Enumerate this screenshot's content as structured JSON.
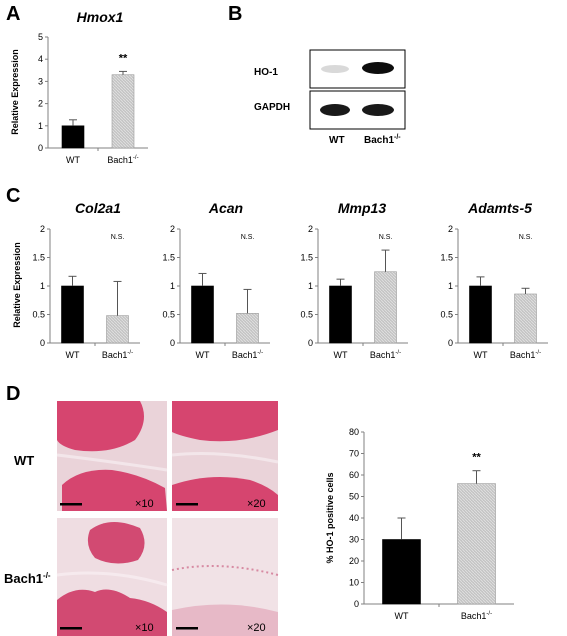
{
  "panels": {
    "a": {
      "letter": "A"
    },
    "b": {
      "letter": "B"
    },
    "c": {
      "letter": "C"
    },
    "d": {
      "letter": "D"
    }
  },
  "blot": {
    "bands": [
      "HO-1",
      "GAPDH"
    ],
    "lanes": [
      "WT",
      "Bach1"
    ],
    "lane_sup": "-/-",
    "ho1_intensity": [
      0.15,
      0.95
    ],
    "gapdh_intensity": [
      0.9,
      0.9
    ]
  },
  "histology": {
    "rows": [
      "WT",
      "Bach1"
    ],
    "row_sup": "-/-",
    "magnifications": [
      "×10",
      "×20"
    ]
  },
  "colors": {
    "wt_bar": "#000000",
    "ko_bar": "#bdbdbd",
    "axis": "#808080",
    "tissue_pink": "#d94a72",
    "tissue_bg": "#ecd6dc"
  },
  "chart_data": [
    {
      "type": "bar",
      "title": "Hmox1",
      "ylabel": "Relative Expression",
      "ylim": [
        0,
        5
      ],
      "yticks": [
        "0",
        "1",
        "2",
        "3",
        "4",
        "5"
      ],
      "categories": [
        "WT",
        "Bach1"
      ],
      "category_sup": [
        "",
        "-/-"
      ],
      "values": [
        1.0,
        3.3
      ],
      "errors": [
        0.27,
        0.15
      ],
      "annotation": "**"
    },
    {
      "type": "bar",
      "title": "Col2a1",
      "ylabel": "Relative Expression",
      "ylim": [
        0,
        2
      ],
      "yticks": [
        "0",
        "0.5",
        "1",
        "1.5",
        "2"
      ],
      "categories": [
        "WT",
        "Bach1"
      ],
      "category_sup": [
        "",
        "-/-"
      ],
      "values": [
        1.0,
        0.48
      ],
      "errors": [
        0.17,
        0.6
      ],
      "annotation": "N.S."
    },
    {
      "type": "bar",
      "title": "Acan",
      "ylabel": "",
      "ylim": [
        0,
        2
      ],
      "yticks": [
        "0",
        "0.5",
        "1",
        "1.5",
        "2"
      ],
      "categories": [
        "WT",
        "Bach1"
      ],
      "category_sup": [
        "",
        "-/-"
      ],
      "values": [
        1.0,
        0.52
      ],
      "errors": [
        0.22,
        0.42
      ],
      "annotation": "N.S."
    },
    {
      "type": "bar",
      "title": "Mmp13",
      "ylabel": "",
      "ylim": [
        0,
        2
      ],
      "yticks": [
        "0",
        "0.5",
        "1",
        "1.5",
        "2"
      ],
      "categories": [
        "WT",
        "Bach1"
      ],
      "category_sup": [
        "",
        "-/-"
      ],
      "values": [
        1.0,
        1.25
      ],
      "errors": [
        0.12,
        0.38
      ],
      "annotation": "N.S."
    },
    {
      "type": "bar",
      "title": "Adamts-5",
      "ylabel": "",
      "ylim": [
        0,
        2
      ],
      "yticks": [
        "0",
        "0.5",
        "1",
        "1.5",
        "2"
      ],
      "categories": [
        "WT",
        "Bach1"
      ],
      "category_sup": [
        "",
        "-/-"
      ],
      "values": [
        1.0,
        0.86
      ],
      "errors": [
        0.16,
        0.1
      ],
      "annotation": "N.S."
    },
    {
      "type": "bar",
      "title": "",
      "ylabel": "% HO-1  positive cells",
      "ylim": [
        0,
        80
      ],
      "yticks": [
        "0",
        "10",
        "20",
        "30",
        "40",
        "50",
        "60",
        "70",
        "80"
      ],
      "categories": [
        "WT",
        "Bach1"
      ],
      "category_sup": [
        "",
        "-/-"
      ],
      "values": [
        30,
        56
      ],
      "errors": [
        10,
        6
      ],
      "annotation": "**"
    }
  ]
}
